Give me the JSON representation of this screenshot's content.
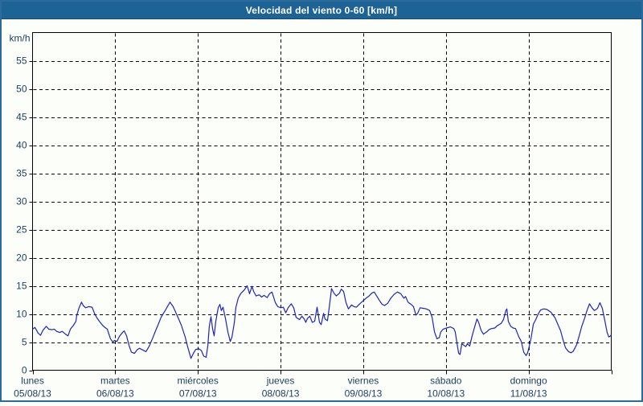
{
  "window": {
    "title": "Velocidad del viento 0-60 [km/h]"
  },
  "colors": {
    "titlebar_bg": "#1e6395",
    "title_text": "#ffffff",
    "frame_border": "#2a6b9c",
    "plot_background": "#fcfefa",
    "plot_border": "#000000",
    "grid": "#000000",
    "axis_label": "#1c3d5e",
    "line": "#2222bc"
  },
  "chart_data": {
    "type": "line",
    "title": "Velocidad del viento 0-60 [km/h]",
    "unit_label": "km/h",
    "ylim": [
      0,
      60
    ],
    "ytick_step": 5,
    "ytick_labels": [
      "0",
      "5",
      "10",
      "15",
      "20",
      "25",
      "30",
      "35",
      "40",
      "45",
      "50",
      "55"
    ],
    "grid": "dashed",
    "x_hours_total": 168,
    "x_days": [
      {
        "name": "lunes",
        "date": "05/08/13"
      },
      {
        "name": "martes",
        "date": "06/08/13"
      },
      {
        "name": "miércoles",
        "date": "07/08/13"
      },
      {
        "name": "jueves",
        "date": "08/08/13"
      },
      {
        "name": "viernes",
        "date": "09/08/13"
      },
      {
        "name": "sábado",
        "date": "10/08/13"
      },
      {
        "name": "domingo",
        "date": "11/08/13"
      }
    ],
    "series": [
      {
        "name": "velocidad del viento (km/h)",
        "points": [
          [
            0,
            7.3
          ],
          [
            0.7,
            7.6
          ],
          [
            1.6,
            6.6
          ],
          [
            2.3,
            6.2
          ],
          [
            3,
            7.1
          ],
          [
            4,
            7.8
          ],
          [
            4.7,
            7.3
          ],
          [
            5.6,
            7.2
          ],
          [
            6.3,
            7.3
          ],
          [
            7,
            6.9
          ],
          [
            7.9,
            6.7
          ],
          [
            8.6,
            6.9
          ],
          [
            9.6,
            6.4
          ],
          [
            10.3,
            6.1
          ],
          [
            11,
            7.3
          ],
          [
            11.9,
            8
          ],
          [
            12.6,
            8.7
          ],
          [
            12.8,
            9.7
          ],
          [
            13.5,
            11.1
          ],
          [
            14.2,
            12.1
          ],
          [
            14.7,
            11.5
          ],
          [
            15.4,
            11.1
          ],
          [
            16.3,
            11.3
          ],
          [
            17.3,
            11.2
          ],
          [
            18,
            10.1
          ],
          [
            18.7,
            9.3
          ],
          [
            19.4,
            8.7
          ],
          [
            20.3,
            8
          ],
          [
            21,
            7.6
          ],
          [
            21.7,
            7.3
          ],
          [
            22.6,
            5.6
          ],
          [
            23.3,
            5
          ],
          [
            23.8,
            5.3
          ],
          [
            24.5,
            5.1
          ],
          [
            25.2,
            6
          ],
          [
            26.1,
            6.7
          ],
          [
            26.6,
            7
          ],
          [
            27.3,
            6.1
          ],
          [
            28,
            4.4
          ],
          [
            28.7,
            3.2
          ],
          [
            29.6,
            3
          ],
          [
            30.3,
            3.6
          ],
          [
            31,
            3.9
          ],
          [
            32,
            3.6
          ],
          [
            32.9,
            3.3
          ],
          [
            33.8,
            4.2
          ],
          [
            35,
            5.9
          ],
          [
            35.7,
            7
          ],
          [
            36.4,
            8
          ],
          [
            37.3,
            9.4
          ],
          [
            38.5,
            10.6
          ],
          [
            39.9,
            12.1
          ],
          [
            40.8,
            11.3
          ],
          [
            42,
            9.7
          ],
          [
            43.2,
            8
          ],
          [
            44.3,
            5.9
          ],
          [
            45,
            4.2
          ],
          [
            46,
            2.1
          ],
          [
            46.7,
            3
          ],
          [
            47.4,
            3.7
          ],
          [
            48.3,
            3.8
          ],
          [
            49,
            3.5
          ],
          [
            49.7,
            2.5
          ],
          [
            50.4,
            2.3
          ],
          [
            50.9,
            4.4
          ],
          [
            51.3,
            7.8
          ],
          [
            51.8,
            9.5
          ],
          [
            52.3,
            7.3
          ],
          [
            52.7,
            6.1
          ],
          [
            53.2,
            8.7
          ],
          [
            53.9,
            11.1
          ],
          [
            54.4,
            11.7
          ],
          [
            54.8,
            10.6
          ],
          [
            55.3,
            11.2
          ],
          [
            56,
            9.2
          ],
          [
            56.7,
            6.8
          ],
          [
            57.4,
            5.1
          ],
          [
            57.9,
            5.9
          ],
          [
            58.6,
            8.5
          ],
          [
            59,
            11.1
          ],
          [
            59.7,
            12.8
          ],
          [
            60.4,
            13.6
          ],
          [
            61.4,
            14.2
          ],
          [
            62.3,
            15
          ],
          [
            63,
            13.6
          ],
          [
            63.7,
            14.9
          ],
          [
            64.2,
            14
          ],
          [
            64.9,
            13.2
          ],
          [
            65.8,
            13.4
          ],
          [
            66.5,
            13
          ],
          [
            67.2,
            13.3
          ],
          [
            68.1,
            12.9
          ],
          [
            68.8,
            13.6
          ],
          [
            69.5,
            13.9
          ],
          [
            70.5,
            12
          ],
          [
            71.2,
            11.3
          ],
          [
            72.1,
            11.1
          ],
          [
            72.8,
            11.2
          ],
          [
            73.5,
            10.2
          ],
          [
            74.2,
            11.1
          ],
          [
            75.1,
            11.8
          ],
          [
            75.8,
            11.1
          ],
          [
            76.5,
            9.4
          ],
          [
            77.5,
            9
          ],
          [
            78.2,
            9.6
          ],
          [
            78.9,
            9.1
          ],
          [
            79.3,
            8.5
          ],
          [
            79.8,
            9.2
          ],
          [
            80.5,
            9.6
          ],
          [
            81.2,
            8.5
          ],
          [
            81.9,
            8.7
          ],
          [
            82.6,
            11.2
          ],
          [
            83.3,
            8.5
          ],
          [
            83.8,
            8.1
          ],
          [
            84.5,
            10.1
          ],
          [
            84.9,
            9.1
          ],
          [
            85.6,
            8.8
          ],
          [
            86.1,
            11
          ],
          [
            86.8,
            14.5
          ],
          [
            87.5,
            13.7
          ],
          [
            88.2,
            13.2
          ],
          [
            89.1,
            13.7
          ],
          [
            89.6,
            14.4
          ],
          [
            90.3,
            14
          ],
          [
            91,
            12
          ],
          [
            91.7,
            10.9
          ],
          [
            92.6,
            11.6
          ],
          [
            93.3,
            11.3
          ],
          [
            94,
            11.2
          ],
          [
            95,
            11.8
          ],
          [
            95.9,
            12.3
          ],
          [
            96.8,
            12.8
          ],
          [
            97.5,
            13.1
          ],
          [
            98.5,
            13.7
          ],
          [
            99.2,
            13.9
          ],
          [
            99.9,
            13.2
          ],
          [
            100.8,
            12.3
          ],
          [
            101.5,
            11.7
          ],
          [
            102.2,
            11.5
          ],
          [
            103.1,
            11.9
          ],
          [
            104,
            12.8
          ],
          [
            105,
            13.5
          ],
          [
            105.9,
            13.9
          ],
          [
            106.9,
            13.6
          ],
          [
            107.8,
            12.8
          ],
          [
            108.3,
            13.1
          ],
          [
            109,
            12.1
          ],
          [
            109.9,
            11.7
          ],
          [
            110.6,
            11.3
          ],
          [
            111.3,
            9.8
          ],
          [
            111.8,
            10.1
          ],
          [
            112.5,
            11.1
          ],
          [
            113.4,
            11
          ],
          [
            114.3,
            10.9
          ],
          [
            115.3,
            10.6
          ],
          [
            116,
            9.4
          ],
          [
            116.7,
            6.8
          ],
          [
            117.4,
            5.6
          ],
          [
            118.1,
            5.8
          ],
          [
            118.5,
            6.8
          ],
          [
            119.2,
            7.3
          ],
          [
            120.2,
            7.5
          ],
          [
            121.3,
            7.7
          ],
          [
            122.3,
            7.4
          ],
          [
            122.7,
            6.8
          ],
          [
            123.2,
            4.9
          ],
          [
            123.7,
            3
          ],
          [
            124.1,
            2.8
          ],
          [
            124.6,
            4.7
          ],
          [
            125.1,
            4.5
          ],
          [
            125.8,
            4.2
          ],
          [
            126.2,
            4.7
          ],
          [
            126.9,
            4.3
          ],
          [
            127.6,
            6.1
          ],
          [
            128.6,
            8.2
          ],
          [
            129,
            9.1
          ],
          [
            129.5,
            8.5
          ],
          [
            130.2,
            7.1
          ],
          [
            130.9,
            6.4
          ],
          [
            131.8,
            6.8
          ],
          [
            132.5,
            7.2
          ],
          [
            133.2,
            7.4
          ],
          [
            134.2,
            7.5
          ],
          [
            134.9,
            7.9
          ],
          [
            136,
            8.3
          ],
          [
            136.7,
            9
          ],
          [
            137.4,
            10.6
          ],
          [
            137.7,
            10.9
          ],
          [
            138.1,
            8.7
          ],
          [
            138.8,
            7.8
          ],
          [
            139.5,
            7.5
          ],
          [
            140.2,
            7.4
          ],
          [
            141.2,
            5.9
          ],
          [
            141.9,
            5.1
          ],
          [
            142.6,
            3.2
          ],
          [
            143.3,
            2.6
          ],
          [
            143.7,
            3.1
          ],
          [
            144,
            3.7
          ],
          [
            144.7,
            5.6
          ],
          [
            145.4,
            8.2
          ],
          [
            146.1,
            9
          ],
          [
            146.8,
            10
          ],
          [
            147.5,
            10.7
          ],
          [
            148.4,
            10.9
          ],
          [
            149.3,
            10.8
          ],
          [
            150.5,
            10.3
          ],
          [
            151.7,
            9.3
          ],
          [
            152.4,
            8.3
          ],
          [
            153.3,
            7
          ],
          [
            154,
            5.4
          ],
          [
            154.7,
            4
          ],
          [
            155.6,
            3.3
          ],
          [
            156.3,
            3.1
          ],
          [
            157,
            3.4
          ],
          [
            158,
            4.6
          ],
          [
            158.7,
            6.1
          ],
          [
            159.4,
            7.7
          ],
          [
            160.3,
            9.3
          ],
          [
            161,
            10.7
          ],
          [
            161.7,
            11.8
          ],
          [
            162.4,
            11.1
          ],
          [
            163.1,
            10.6
          ],
          [
            164,
            11
          ],
          [
            164.7,
            12
          ],
          [
            165.4,
            11
          ],
          [
            166.1,
            8.9
          ],
          [
            166.8,
            6.7
          ],
          [
            167.3,
            5.9
          ],
          [
            167.8,
            6.1
          ],
          [
            168,
            6.3
          ]
        ]
      }
    ]
  }
}
